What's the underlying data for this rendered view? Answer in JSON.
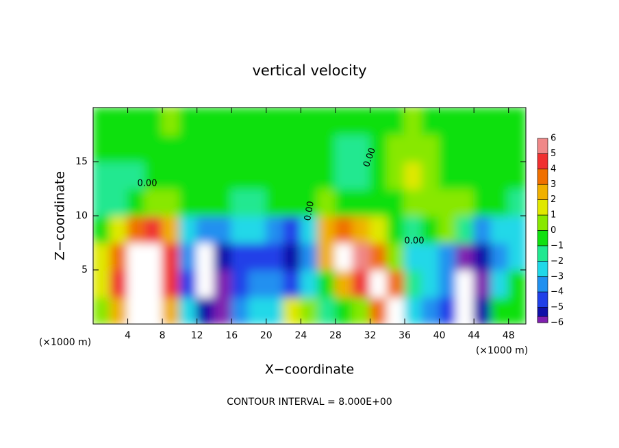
{
  "chart_data": {
    "type": "heatmap",
    "title": "vertical velocity",
    "xlabel": "X−coordinate",
    "ylabel": "Z−coordinate",
    "x_unit": "(×1000 m)",
    "footer": "CONTOUR INTERVAL = 8.000E+00",
    "xlim": [
      0,
      50
    ],
    "ylim": [
      0,
      20
    ],
    "xticks": [
      4,
      8,
      12,
      16,
      20,
      24,
      28,
      32,
      36,
      40,
      44,
      48
    ],
    "yticks": [
      5,
      10,
      15
    ],
    "contour_labels": [
      "0.00",
      "0.00",
      "0.00",
      "0.00"
    ],
    "colorbar": {
      "ticks": [
        6,
        5,
        4,
        3,
        2,
        1,
        0,
        {
          "value": -1,
          "label": "−1"
        },
        {
          "value": -2,
          "label": "−2"
        },
        {
          "value": -3,
          "label": "−3"
        },
        {
          "value": -4,
          "label": "−4"
        },
        {
          "value": -5,
          "label": "−5"
        },
        {
          "value": -6,
          "label": "−6"
        }
      ],
      "colors": [
        "#f08888",
        "#f03030",
        "#f07000",
        "#f0b000",
        "#e0e800",
        "#88e800",
        "#10e010",
        "#20e890",
        "#20d8e8",
        "#2090f0",
        "#2040e8",
        "#1010a8",
        "#8020b0"
      ],
      "over_color": "#ffffff"
    },
    "z": [
      [
        1,
        3,
        8,
        8,
        3,
        -2,
        -5,
        -6,
        -3,
        -2,
        -2,
        2,
        1,
        -1,
        0,
        1,
        4,
        8,
        -2,
        -3,
        -4,
        8,
        -5,
        0,
        0
      ],
      [
        2,
        5,
        8,
        8,
        5,
        -4,
        8,
        -6,
        -4,
        -3,
        -3,
        -4,
        -2,
        0,
        3,
        5,
        8,
        4,
        -1,
        -2,
        -3,
        8,
        -6,
        -2,
        0
      ],
      [
        2,
        4,
        8,
        8,
        5,
        -3,
        8,
        -5,
        -4,
        -4,
        -4,
        -5,
        -3,
        3,
        8,
        6,
        4,
        1,
        -2,
        -2,
        -3,
        -6,
        -5,
        -3,
        -2
      ],
      [
        0,
        2,
        4,
        5,
        3,
        -2,
        -3,
        -3,
        -2,
        -2,
        -3,
        -4,
        -2,
        3,
        4,
        3,
        2,
        0,
        -1,
        0,
        1,
        -1,
        -3,
        -2,
        -2
      ],
      [
        -1,
        -1,
        0,
        1,
        1,
        0,
        0,
        0,
        -1,
        -1,
        0,
        0,
        0,
        1,
        0,
        0,
        0,
        0,
        1,
        1,
        1,
        1,
        0,
        0,
        -1
      ],
      [
        -1,
        -1,
        -1,
        0,
        0,
        0,
        0,
        0,
        0,
        0,
        0,
        0,
        0,
        0,
        -1,
        -1,
        0,
        1,
        2,
        1,
        0,
        0,
        0,
        0,
        0
      ],
      [
        0,
        0,
        0,
        0,
        0,
        0,
        0,
        0,
        0,
        0,
        0,
        0,
        0,
        0,
        -1,
        -1,
        0,
        1,
        1,
        1,
        0,
        0,
        0,
        0,
        0
      ],
      [
        0,
        0,
        0,
        0,
        1,
        0,
        0,
        0,
        0,
        0,
        0,
        0,
        0,
        0,
        0,
        0,
        0,
        0,
        1,
        0,
        0,
        0,
        0,
        0,
        0
      ]
    ]
  }
}
